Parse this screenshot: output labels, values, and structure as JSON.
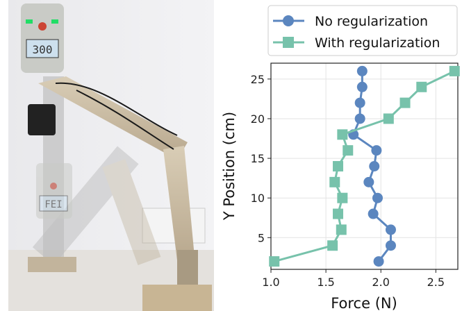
{
  "chart_data": {
    "type": "line",
    "orientation": "horizontal-x-force",
    "xlabel": "Force (N)",
    "ylabel": "Y Position (cm)",
    "xlim": [
      1.0,
      2.7
    ],
    "ylim": [
      1.0,
      27.0
    ],
    "xticks": [
      "1.0",
      "1.5",
      "2.0",
      "2.5"
    ],
    "xtick_values": [
      1.0,
      1.5,
      2.0,
      2.5
    ],
    "yticks": [
      "5",
      "10",
      "15",
      "20",
      "25"
    ],
    "ytick_values": [
      5,
      10,
      15,
      20,
      25
    ],
    "grid": true,
    "legend_position": "top",
    "series": [
      {
        "name": "No regularization",
        "color": "#5b86bf",
        "marker": "circle",
        "points": [
          {
            "x": 1.98,
            "y": 2
          },
          {
            "x": 2.09,
            "y": 4
          },
          {
            "x": 2.09,
            "y": 6
          },
          {
            "x": 1.93,
            "y": 8
          },
          {
            "x": 1.97,
            "y": 10
          },
          {
            "x": 1.89,
            "y": 12
          },
          {
            "x": 1.94,
            "y": 14
          },
          {
            "x": 1.96,
            "y": 16
          },
          {
            "x": 1.75,
            "y": 18
          },
          {
            "x": 1.81,
            "y": 20
          },
          {
            "x": 1.81,
            "y": 22
          },
          {
            "x": 1.83,
            "y": 24
          },
          {
            "x": 1.83,
            "y": 26
          }
        ]
      },
      {
        "name": "With regularization",
        "color": "#77c2ab",
        "marker": "square",
        "points": [
          {
            "x": 1.03,
            "y": 2
          },
          {
            "x": 1.56,
            "y": 4
          },
          {
            "x": 1.64,
            "y": 6
          },
          {
            "x": 1.61,
            "y": 8
          },
          {
            "x": 1.65,
            "y": 10
          },
          {
            "x": 1.58,
            "y": 12
          },
          {
            "x": 1.61,
            "y": 14
          },
          {
            "x": 1.7,
            "y": 16
          },
          {
            "x": 1.65,
            "y": 18
          },
          {
            "x": 2.07,
            "y": 20
          },
          {
            "x": 2.22,
            "y": 22
          },
          {
            "x": 2.37,
            "y": 24
          },
          {
            "x": 2.67,
            "y": 26
          }
        ]
      }
    ]
  },
  "photo": {
    "device_lcd_top": "300",
    "device_lcd_bottom": "FEI"
  }
}
